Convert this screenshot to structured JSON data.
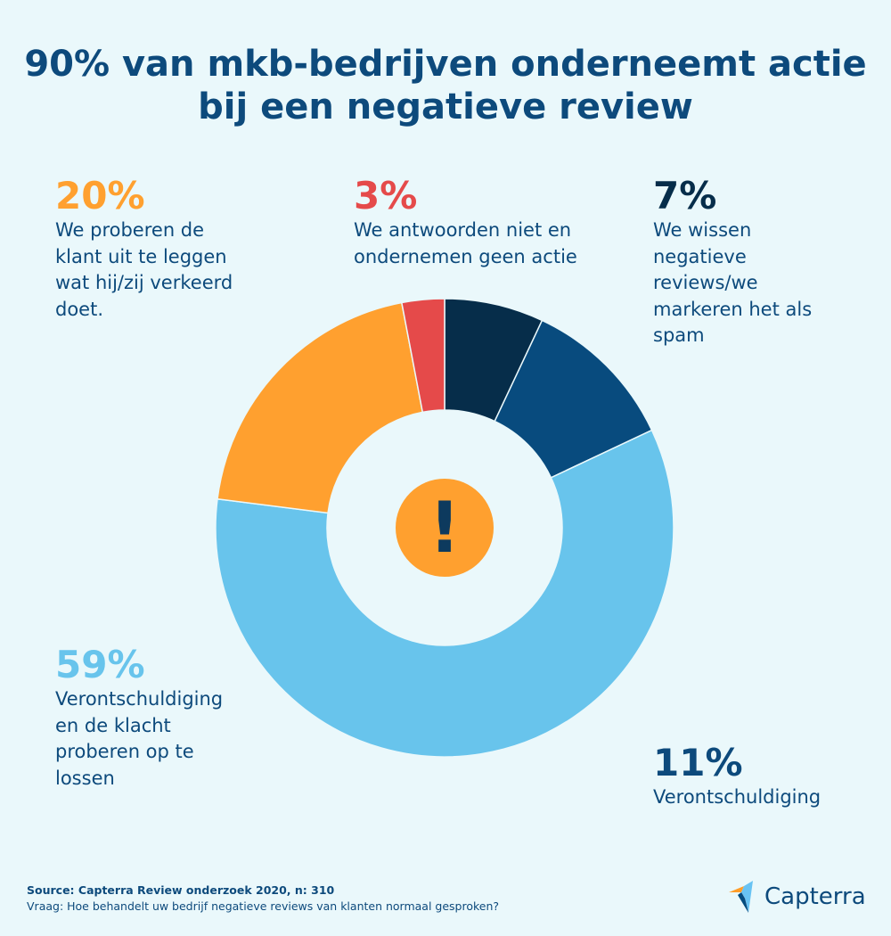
{
  "title": {
    "line1": "90% van mkb-bedrijven onderneemt actie",
    "line2": "bij een negatieve review"
  },
  "chart_data": {
    "type": "pie",
    "variant": "donut",
    "start_angle_deg": 0,
    "direction": "clockwise",
    "slices": [
      {
        "key": "s7",
        "label": "7%",
        "value": 7,
        "text": "We wissen negatieve reviews/we markeren het als spam",
        "color": "#062d4a"
      },
      {
        "key": "s11",
        "label": "11%",
        "value": 11,
        "text": "Verontschuldiging",
        "color": "#084b7e"
      },
      {
        "key": "s59",
        "label": "59%",
        "value": 59,
        "text": "Verontschuldiging en de klacht proberen op te lossen",
        "color": "#68c4ec"
      },
      {
        "key": "s20",
        "label": "20%",
        "value": 20,
        "text": "We proberen de klant uit te leggen wat hij/zij verkeerd doet.",
        "color": "#ffa02f"
      },
      {
        "key": "s3",
        "label": "3%",
        "value": 3,
        "text": "We antwoorden niet en ondernemen geen actie",
        "color": "#e54a4a"
      }
    ],
    "center_icon": {
      "symbol": "!",
      "color": "#ffa02f",
      "symbol_color": "#0d3a5e"
    }
  },
  "labels": {
    "s20": {
      "pct": "20%",
      "lines": [
        "We proberen de",
        "klant uit te leggen",
        "wat hij/zij verkeerd",
        "doet."
      ]
    },
    "s3": {
      "pct": "3%",
      "lines": [
        "We antwoorden niet en",
        "ondernemen geen actie"
      ]
    },
    "s7": {
      "pct": "7%",
      "lines": [
        "We wissen",
        "negatieve",
        "reviews/we",
        "markeren het als",
        "spam"
      ]
    },
    "s59": {
      "pct": "59%",
      "lines": [
        "Verontschuldiging",
        "en de klacht",
        "proberen op te",
        "lossen"
      ]
    },
    "s11": {
      "pct": "11%",
      "lines": [
        "Verontschuldiging"
      ]
    }
  },
  "footer": {
    "source": "Source: Capterra Review onderzoek 2020, n: 310",
    "question": "Vraag: Hoe behandelt uw bedrijf negatieve reviews van klanten normaal gesproken?"
  },
  "logo": {
    "text": "Capterra",
    "colors": [
      "#ff9d28",
      "#68c3f3",
      "#ff3d2e",
      "#044d80"
    ]
  }
}
